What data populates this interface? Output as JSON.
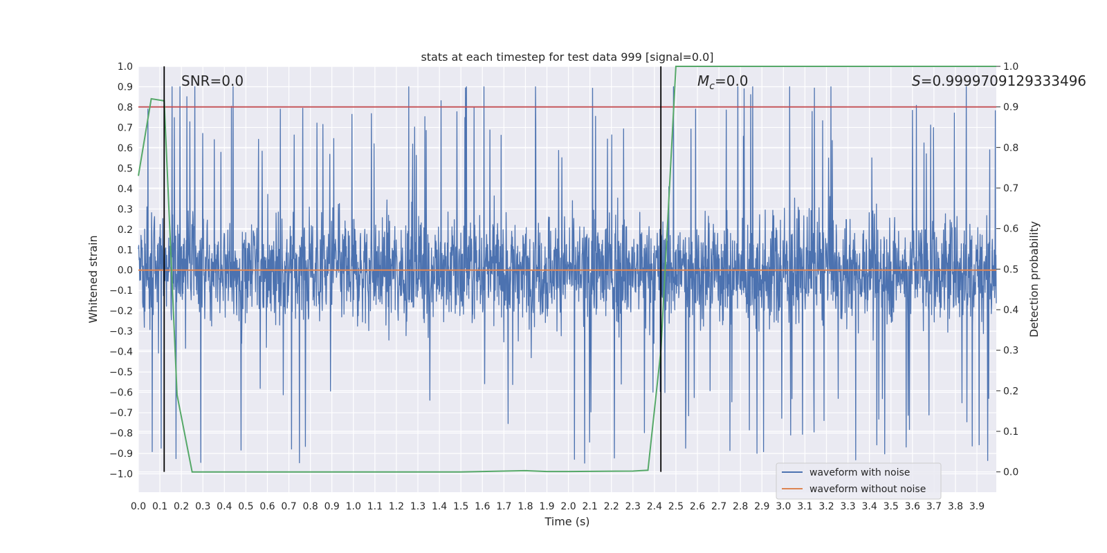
{
  "chart_data": {
    "type": "line",
    "title": "stats at each timestep for test data 999 [signal=0.0]",
    "xlabel": "Time (s)",
    "ylabel": "Whitened strain",
    "y2label": "Detection probability",
    "xlim": [
      0.0,
      3.99
    ],
    "ylim": [
      -1.09,
      1.0
    ],
    "y2lim": [
      -0.05,
      1.0
    ],
    "xticks": [
      0.0,
      0.1,
      0.2,
      0.3,
      0.4,
      0.5,
      0.6,
      0.7,
      0.8,
      0.9,
      1.0,
      1.1,
      1.2,
      1.3,
      1.4,
      1.5,
      1.6,
      1.7,
      1.8,
      1.9,
      2.0,
      2.1,
      2.2,
      2.3,
      2.4,
      2.5,
      2.6,
      2.7,
      2.8,
      2.9,
      3.0,
      3.1,
      3.2,
      3.3,
      3.4,
      3.5,
      3.6,
      3.7,
      3.8,
      3.9
    ],
    "yticks": [
      -1.0,
      -0.9,
      -0.8,
      -0.7,
      -0.6,
      -0.5,
      -0.4,
      -0.3,
      -0.2,
      -0.1,
      0.0,
      0.1,
      0.2,
      0.3,
      0.4,
      0.5,
      0.6,
      0.7,
      0.8,
      0.9,
      1.0
    ],
    "y2ticks": [
      0.0,
      0.1,
      0.2,
      0.3,
      0.4,
      0.5,
      0.6,
      0.7,
      0.8,
      0.9,
      1.0
    ],
    "series": [
      {
        "name": "waveform with noise",
        "color": "#4c72b0",
        "axis": "left",
        "kind": "noise",
        "envelope": 0.45,
        "peak_range": [
          -1.0,
          0.9
        ]
      },
      {
        "name": "waveform without noise",
        "color": "#dd8452",
        "axis": "left",
        "x": [
          0.0,
          3.99
        ],
        "y": [
          0.0,
          0.0
        ]
      },
      {
        "name": "detection probability",
        "color": "#55a868",
        "axis": "right",
        "x": [
          0.0,
          0.06,
          0.12,
          0.18,
          0.25,
          0.3,
          0.5,
          1.0,
          1.5,
          1.7,
          1.8,
          1.9,
          2.0,
          2.3,
          2.37,
          2.43,
          2.5,
          2.7,
          3.0,
          3.5,
          3.99
        ],
        "y": [
          0.73,
          0.92,
          0.915,
          0.19,
          0.0,
          0.0,
          0.0,
          0.0,
          0.0,
          0.002,
          0.003,
          0.001,
          0.001,
          0.002,
          0.004,
          0.3,
          1.0,
          1.0,
          1.0,
          1.0,
          1.0
        ]
      }
    ],
    "threshold": {
      "value": 0.9,
      "axis": "right",
      "color": "#c44e52"
    },
    "vlines": [
      {
        "x": 0.12,
        "color": "#000000"
      },
      {
        "x": 2.43,
        "color": "#000000"
      }
    ],
    "annotations": {
      "snr_text": "SNR=0.0",
      "mc_symbol": "M",
      "mc_sub": "c",
      "mc_value": "=0.0",
      "s_symbol": "S",
      "s_value": "=0.9999709129333496"
    },
    "legend": {
      "position": "lower-right",
      "entries": [
        "waveform with noise",
        "waveform without noise"
      ]
    }
  }
}
